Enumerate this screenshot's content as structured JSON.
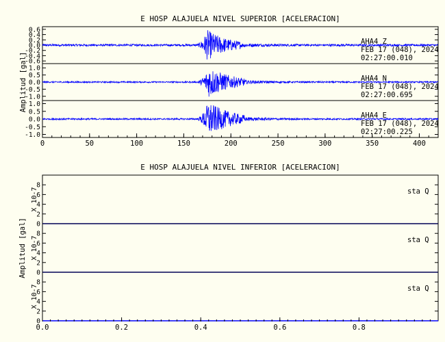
{
  "chart_data": [
    {
      "type": "line",
      "title": "E HOSP ALAJUELA NIVEL SUPERIOR [ACELERACION]",
      "ylabel": "Amplitud [gal]",
      "xlim": [
        0,
        420
      ],
      "x_ticks": [
        "0",
        "50",
        "100",
        "150",
        "200",
        "250",
        "300",
        "350",
        "400"
      ],
      "grid": false,
      "line_color": "#0000ff",
      "series": [
        {
          "name": "AHA4   Z",
          "date": "FEB 17 (048), 2024",
          "time": "02:27:00.010",
          "ylim": [
            -0.7,
            0.7
          ],
          "y_ticks": [
            "0.6",
            "0.4",
            "0.2",
            "0.0",
            "-0.2",
            "-0.4",
            "-0.6"
          ],
          "noise_amp": 0.04,
          "event": {
            "onset": 163,
            "peak": 175,
            "peak_amp": 0.55,
            "decay": 22,
            "end": 210
          }
        },
        {
          "name": "AHA4   N",
          "date": "FEB 17 (048), 2024",
          "time": "02:27:00.695",
          "ylim": [
            -1.3,
            1.3
          ],
          "y_ticks": [
            "1.0",
            "0.5",
            "0.0",
            "-0.5",
            "-1.0"
          ],
          "noise_amp": 0.05,
          "event": {
            "onset": 163,
            "peak": 177,
            "peak_amp": 1.05,
            "decay": 24,
            "end": 215
          }
        },
        {
          "name": "AHA4   E",
          "date": "FEB 17 (048), 2024",
          "time": "02:27:00.225",
          "ylim": [
            -1.2,
            1.2
          ],
          "y_ticks": [
            "1.0",
            "0.5",
            "0.0",
            "-0.5",
            "-1.0"
          ],
          "noise_amp": 0.05,
          "event": {
            "onset": 163,
            "peak": 176,
            "peak_amp": 1.1,
            "decay": 24,
            "end": 215
          }
        }
      ]
    },
    {
      "type": "line",
      "title": "E HOSP ALAJUELA NIVEL INFERIOR [ACELERACION]",
      "ylabel": "Amplitud [gal]",
      "xlim": [
        0,
        1
      ],
      "x_ticks": [
        "0.0",
        "0.2",
        "0.4",
        "0.6",
        "0.8"
      ],
      "grid": false,
      "line_color": "#0000ff",
      "series": [
        {
          "name": "sta   Q",
          "scale_label": "X 10-7",
          "ylim": [
            0,
            10
          ],
          "y_ticks": [
            "0",
            "2",
            "4",
            "6",
            "8"
          ],
          "values": [
            0,
            0
          ]
        },
        {
          "name": "sta   Q",
          "scale_label": "X 10-7",
          "ylim": [
            0,
            10
          ],
          "y_ticks": [
            "0",
            "2",
            "4",
            "6",
            "8"
          ],
          "values": [
            0,
            0
          ]
        },
        {
          "name": "sta   Q",
          "scale_label": "X 10-7",
          "ylim": [
            0,
            10
          ],
          "y_ticks": [
            "0",
            "2",
            "4",
            "6",
            "8"
          ],
          "values": [
            0,
            0
          ]
        }
      ]
    }
  ]
}
